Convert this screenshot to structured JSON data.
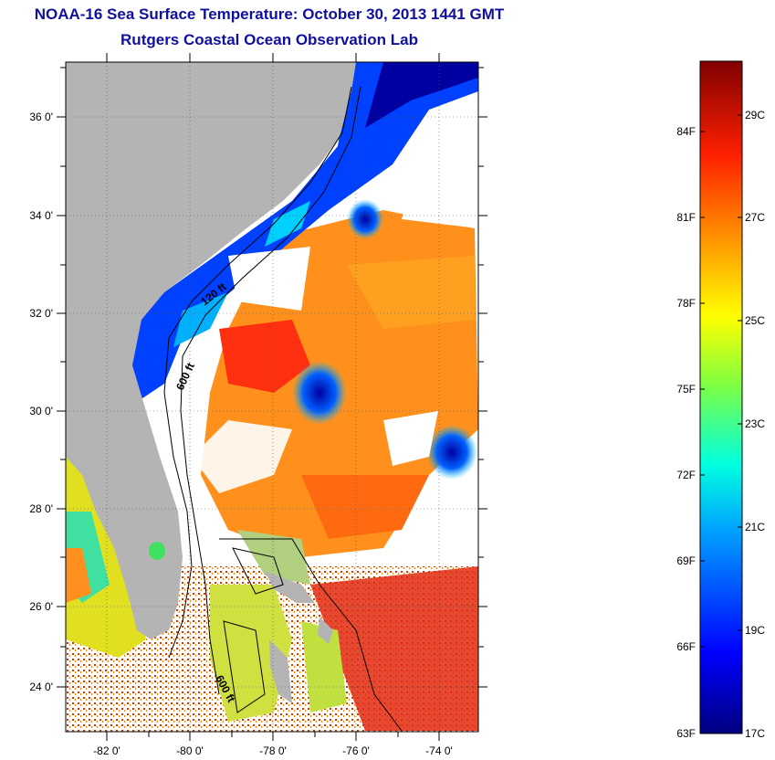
{
  "title": "NOAA-16 Sea Surface Temperature:  October 30, 2013 1441 GMT",
  "subtitle": "Rutgers Coastal Ocean Observation Lab",
  "lat_ticks": [
    "36 0'",
    "34 0'",
    "32 0'",
    "30 0'",
    "28 0'",
    "26 0'",
    "24 0'"
  ],
  "lon_ticks": [
    "-82 0'",
    "-80 0'",
    "-78 0'",
    "-76 0'",
    "-74 0'"
  ],
  "contour_labels": [
    "120 ft",
    "600 ft",
    "600 ft"
  ],
  "colorbar": {
    "fahrenheit": [
      "84F",
      "81F",
      "78F",
      "75F",
      "72F",
      "69F",
      "66F",
      "63F"
    ],
    "celsius": [
      "29C",
      "27C",
      "25C",
      "23C",
      "21C",
      "19C",
      "17C"
    ]
  },
  "colors": {
    "title": "#1010a0",
    "land": "#b4b4b4",
    "cold": "#000090",
    "warm": "#ff6000"
  }
}
